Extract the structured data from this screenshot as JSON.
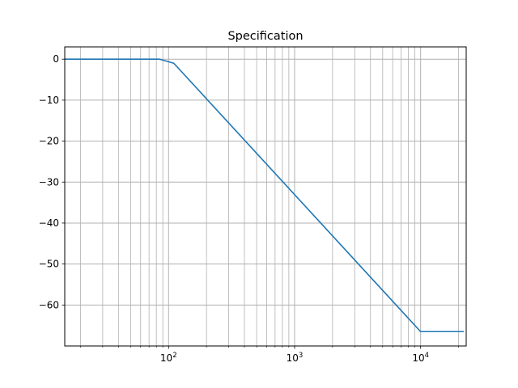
{
  "chart_data": {
    "type": "line",
    "title": "Specification",
    "xlabel": "",
    "ylabel": "",
    "x_scale": "log",
    "xlim": [
      15,
      23000
    ],
    "ylim": [
      -70,
      3
    ],
    "grid": {
      "major": true,
      "minor_x": true
    },
    "line_color": "#1f77b4",
    "grid_color": "#b0b0b0",
    "x_ticks": [
      {
        "value": 100,
        "base": "10",
        "exp": "2"
      },
      {
        "value": 1000,
        "base": "10",
        "exp": "3"
      },
      {
        "value": 10000,
        "base": "10",
        "exp": "4"
      }
    ],
    "y_ticks": [
      {
        "value": 0,
        "label": "0"
      },
      {
        "value": -10,
        "label": "−10"
      },
      {
        "value": -20,
        "label": "−20"
      },
      {
        "value": -30,
        "label": "−30"
      },
      {
        "value": -40,
        "label": "−40"
      },
      {
        "value": -50,
        "label": "−50"
      },
      {
        "value": -60,
        "label": "−60"
      }
    ],
    "series": [
      {
        "x": [
          15,
          85,
          110,
          10000,
          22000
        ],
        "y": [
          0,
          0,
          -1,
          -66.5,
          -66.5
        ]
      }
    ]
  }
}
